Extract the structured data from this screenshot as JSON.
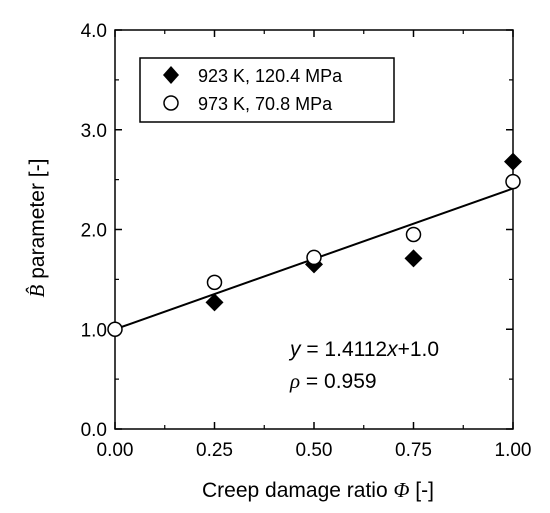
{
  "chart_data": {
    "type": "scatter",
    "xlabel_prefix": "Creep damage ratio ",
    "xlabel_symbol": "Φ",
    "xlabel_suffix": " [-]",
    "ylabel_symbol": "B̂",
    "ylabel_suffix": " parameter [-]",
    "xlim": [
      0.0,
      1.0
    ],
    "ylim": [
      0.0,
      4.0
    ],
    "x_ticks": [
      0.0,
      0.25,
      0.5,
      0.75,
      1.0
    ],
    "x_tick_labels": [
      "0.00",
      "0.25",
      "0.50",
      "0.75",
      "1.00"
    ],
    "y_ticks": [
      0.0,
      1.0,
      2.0,
      3.0,
      4.0
    ],
    "y_tick_labels": [
      "0.0",
      "1.0",
      "2.0",
      "3.0",
      "4.0"
    ],
    "grid": false,
    "legend_position": "top-left",
    "series": [
      {
        "name": "923 K, 120.4 MPa",
        "marker": "filled-diamond",
        "color": "#000000",
        "x": [
          0.25,
          0.5,
          0.75,
          1.0
        ],
        "y": [
          1.27,
          1.65,
          1.71,
          2.68
        ]
      },
      {
        "name": "973 K, 70.8 MPa",
        "marker": "open-circle",
        "color": "#000000",
        "x": [
          0.0,
          0.25,
          0.5,
          0.75,
          1.0
        ],
        "y": [
          1.0,
          1.47,
          1.72,
          1.95,
          2.48
        ]
      }
    ],
    "fit_line": {
      "slope": 1.4112,
      "intercept": 1.0,
      "x_range": [
        0.0,
        1.0
      ]
    },
    "annotations": {
      "equation_lhs": "y",
      "equation_mid": " = 1.4112",
      "equation_var": "x",
      "equation_rhs": "+1.0",
      "corr_symbol": "ρ",
      "corr_value": " = 0.959"
    }
  }
}
